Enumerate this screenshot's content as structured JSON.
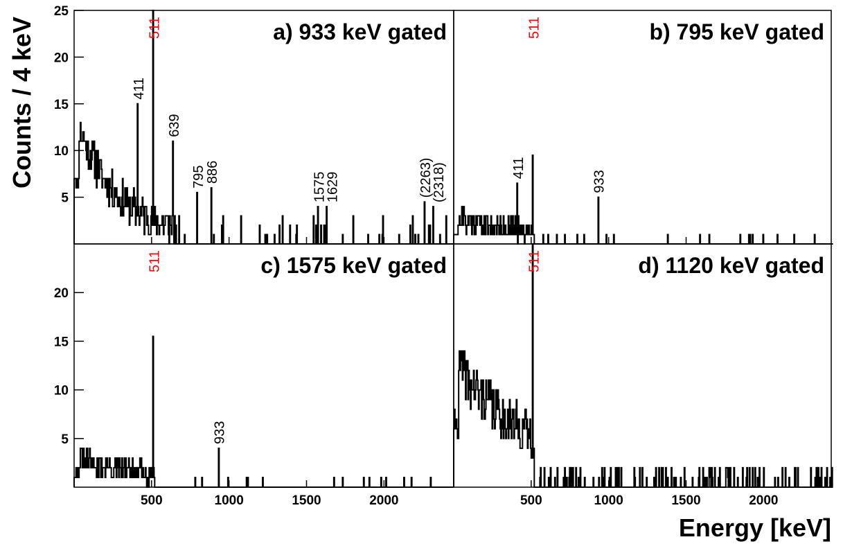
{
  "chart_data": {
    "type": "histogram",
    "ylabel": "Counts / 4 keV",
    "xlabel": "Energy [keV]",
    "bin_width_keV": 4,
    "xlim": [
      0,
      2450
    ],
    "x_ticks": [
      500,
      1000,
      1500,
      2000
    ],
    "x_tick_labels": [
      "500",
      "1000",
      "1500",
      "2000"
    ],
    "colors": {
      "axes": "#000000",
      "spectrum": "#000000",
      "annihilation_label": "#ff0000"
    },
    "panels": [
      {
        "id": "a",
        "title": "a) 933 keV gated",
        "ylim": [
          0,
          25
        ],
        "y_ticks": [
          5,
          10,
          15,
          20,
          25
        ],
        "y_tick_labels": [
          "5",
          "10",
          "15",
          "20",
          "25"
        ],
        "peaks": [
          {
            "energy": 411,
            "counts": 15,
            "label": "411",
            "color": "#000000"
          },
          {
            "energy": 511,
            "counts": 25,
            "label": "511",
            "color": "#ff0000"
          },
          {
            "energy": 639,
            "counts": 11,
            "label": "639",
            "color": "#000000"
          },
          {
            "energy": 795,
            "counts": 5.5,
            "label": "795",
            "color": "#000000"
          },
          {
            "energy": 886,
            "counts": 6,
            "label": "886",
            "color": "#000000"
          },
          {
            "energy": 1575,
            "counts": 4,
            "label": "1575",
            "color": "#000000"
          },
          {
            "energy": 1629,
            "counts": 4,
            "label": "1629",
            "color": "#000000"
          },
          {
            "energy": 2263,
            "counts": 4.5,
            "label": "(2263)",
            "color": "#000000"
          },
          {
            "energy": 2318,
            "counts": 4,
            "label": "(2318)",
            "color": "#000000"
          }
        ],
        "continuum": {
          "start": 0,
          "end": 650,
          "level": 6,
          "decay": 0.004,
          "noise": 4,
          "seed": 11
        },
        "sparse": {
          "start": 650,
          "end": 2420,
          "count": 40,
          "max": 3,
          "seed": 12
        }
      },
      {
        "id": "b",
        "title": "b) 795 keV gated",
        "ylim": [
          0,
          25
        ],
        "y_ticks": [
          5,
          10,
          15,
          20,
          25
        ],
        "y_tick_labels": [
          "5",
          "10",
          "15",
          "20",
          "25"
        ],
        "peaks": [
          {
            "energy": 411,
            "counts": 6.5,
            "label": "411",
            "color": "#000000"
          },
          {
            "energy": 511,
            "counts": 9.5,
            "label": "511",
            "color": "#ff0000"
          },
          {
            "energy": 933,
            "counts": 5,
            "label": "933",
            "color": "#000000"
          }
        ],
        "continuum": {
          "start": 0,
          "end": 520,
          "level": 1.6,
          "decay": 0.002,
          "noise": 2.5,
          "seed": 21
        },
        "sparse": {
          "start": 520,
          "end": 2420,
          "count": 20,
          "max": 1,
          "seed": 22
        }
      },
      {
        "id": "c",
        "title": "c) 1575 keV gated",
        "ylim": [
          0,
          25
        ],
        "y_ticks": [
          5,
          10,
          15,
          20
        ],
        "y_tick_labels": [
          "5",
          "10",
          "15",
          "20"
        ],
        "peaks": [
          {
            "energy": 511,
            "counts": 15.5,
            "label": "511",
            "color": "#ff0000"
          },
          {
            "energy": 933,
            "counts": 4,
            "label": "933",
            "color": "#000000"
          }
        ],
        "continuum": {
          "start": 0,
          "end": 520,
          "level": 1.6,
          "decay": 0.002,
          "noise": 2.5,
          "seed": 31
        },
        "sparse": {
          "start": 520,
          "end": 2420,
          "count": 15,
          "max": 1,
          "seed": 32
        }
      },
      {
        "id": "d",
        "title": "d) 1120 keV gated",
        "ylim": [
          0,
          25
        ],
        "y_ticks": [
          5,
          10,
          15,
          20
        ],
        "y_tick_labels": [
          "5",
          "10",
          "15",
          "20"
        ],
        "peaks": [
          {
            "energy": 511,
            "counts": 25,
            "label": "511",
            "color": "#ff0000"
          }
        ],
        "continuum": {
          "start": 0,
          "end": 520,
          "level": 8,
          "decay": 0.002,
          "noise": 5,
          "seed": 41
        },
        "sparse": {
          "start": 520,
          "end": 2450,
          "count": 110,
          "max": 2,
          "seed": 42
        }
      }
    ]
  }
}
